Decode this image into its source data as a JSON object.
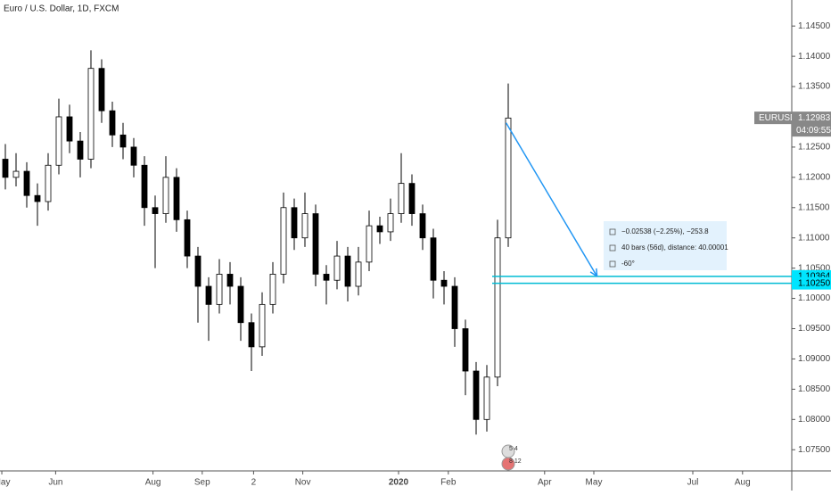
{
  "chart_data": {
    "type": "candlestick",
    "title": "Euro / U.S. Dollar, 1D, FXCM",
    "ohlc": [
      [
        1.123,
        1.1255,
        1.118,
        1.12
      ],
      [
        1.12,
        1.124,
        1.1185,
        1.121
      ],
      [
        1.121,
        1.1225,
        1.115,
        1.117
      ],
      [
        1.117,
        1.119,
        1.112,
        1.116
      ],
      [
        1.116,
        1.124,
        1.1145,
        1.122
      ],
      [
        1.122,
        1.133,
        1.1205,
        1.13
      ],
      [
        1.13,
        1.132,
        1.124,
        1.126
      ],
      [
        1.126,
        1.1275,
        1.12,
        1.123
      ],
      [
        1.123,
        1.141,
        1.1215,
        1.138
      ],
      [
        1.138,
        1.1395,
        1.129,
        1.131
      ],
      [
        1.131,
        1.1325,
        1.125,
        1.127
      ],
      [
        1.127,
        1.129,
        1.123,
        1.125
      ],
      [
        1.125,
        1.1265,
        1.12,
        1.122
      ],
      [
        1.122,
        1.1235,
        1.112,
        1.115
      ],
      [
        1.115,
        1.117,
        1.105,
        1.114
      ],
      [
        1.114,
        1.1235,
        1.1125,
        1.12
      ],
      [
        1.12,
        1.1215,
        1.111,
        1.113
      ],
      [
        1.113,
        1.1145,
        1.105,
        1.107
      ],
      [
        1.107,
        1.1085,
        1.096,
        1.102
      ],
      [
        1.102,
        1.1035,
        1.093,
        1.099
      ],
      [
        1.099,
        1.1065,
        1.0975,
        1.104
      ],
      [
        1.104,
        1.106,
        1.099,
        1.102
      ],
      [
        1.102,
        1.1035,
        1.093,
        1.096
      ],
      [
        1.096,
        1.0975,
        1.088,
        1.092
      ],
      [
        1.092,
        1.101,
        1.0905,
        1.099
      ],
      [
        1.099,
        1.106,
        1.0975,
        1.104
      ],
      [
        1.104,
        1.1175,
        1.1025,
        1.115
      ],
      [
        1.115,
        1.1165,
        1.108,
        1.11
      ],
      [
        1.11,
        1.1175,
        1.1085,
        1.114
      ],
      [
        1.114,
        1.1155,
        1.102,
        1.104
      ],
      [
        1.104,
        1.1055,
        1.099,
        1.103
      ],
      [
        1.103,
        1.1095,
        1.1015,
        1.107
      ],
      [
        1.107,
        1.1085,
        1.0995,
        1.102
      ],
      [
        1.102,
        1.1085,
        1.1005,
        1.106
      ],
      [
        1.106,
        1.1145,
        1.1045,
        1.112
      ],
      [
        1.112,
        1.1135,
        1.109,
        1.111
      ],
      [
        1.111,
        1.1165,
        1.1095,
        1.114
      ],
      [
        1.114,
        1.124,
        1.1125,
        1.119
      ],
      [
        1.119,
        1.1205,
        1.112,
        1.114
      ],
      [
        1.114,
        1.1155,
        1.108,
        1.11
      ],
      [
        1.11,
        1.1115,
        1.1,
        1.103
      ],
      [
        1.103,
        1.1045,
        1.099,
        1.102
      ],
      [
        1.102,
        1.1035,
        1.092,
        1.095
      ],
      [
        1.095,
        1.0965,
        1.084,
        1.088
      ],
      [
        1.088,
        1.0895,
        1.0775,
        1.08
      ],
      [
        1.08,
        1.089,
        1.078,
        1.087
      ],
      [
        1.087,
        1.113,
        1.0855,
        1.11
      ],
      [
        1.11,
        1.1355,
        1.1085,
        1.1298
      ]
    ],
    "up_color": "#ffffff",
    "down_color": "#000000",
    "xlim": [
      0,
      74
    ],
    "ylim": [
      1.0715,
      1.1493
    ],
    "xticks": [
      {
        "value": 0.17,
        "label": "May"
      },
      {
        "value": 5.2,
        "label": "Jun"
      },
      {
        "value": 14.3,
        "label": "Aug"
      },
      {
        "value": 18.9,
        "label": "Sep"
      },
      {
        "value": 23.7,
        "label": "2"
      },
      {
        "value": 28.3,
        "label": "Nov"
      },
      {
        "value": 37.25,
        "label": "2020"
      },
      {
        "value": 41.9,
        "label": "Feb"
      },
      {
        "value": 50.9,
        "label": "Apr"
      },
      {
        "value": 55.5,
        "label": "May"
      },
      {
        "value": 64.75,
        "label": "Jul"
      },
      {
        "value": 69.4,
        "label": "Aug"
      }
    ],
    "yticks": [
      {
        "value": 1.075,
        "label": "1.07500"
      },
      {
        "value": 1.08,
        "label": "1.08000"
      },
      {
        "value": 1.085,
        "label": "1.08500"
      },
      {
        "value": 1.09,
        "label": "1.09000"
      },
      {
        "value": 1.095,
        "label": "1.09500"
      },
      {
        "value": 1.1,
        "label": "1.10000"
      },
      {
        "value": 1.105,
        "label": "1.10500"
      },
      {
        "value": 1.11,
        "label": "1.11000"
      },
      {
        "value": 1.115,
        "label": "1.11500"
      },
      {
        "value": 1.12,
        "label": "1.12000"
      },
      {
        "value": 1.125,
        "label": "1.12500"
      },
      {
        "value": 1.13,
        "label": "1.13000"
      },
      {
        "value": 1.135,
        "label": "1.13500"
      },
      {
        "value": 1.14,
        "label": "1.14000"
      },
      {
        "value": 1.145,
        "label": "1.14500"
      }
    ],
    "last_price": {
      "symbol": "EURUSD",
      "value": 1.12983,
      "label": "1.12983",
      "countdown": "04:09:55"
    },
    "hlines": [
      {
        "value": 1.10364,
        "label": "1.10364"
      },
      {
        "value": 1.1025,
        "label": "1.10250"
      }
    ],
    "hline_start": 46,
    "arrow": {
      "x": [
        47.3,
        55.8
      ],
      "y": [
        1.129,
        1.10364
      ]
    },
    "measure": [
      "−0.02538 (−2.25%), −253.8",
      "40 bars (56d), distance: 40.00001",
      "-60°"
    ],
    "events": [
      "5 4",
      "8 12"
    ]
  }
}
